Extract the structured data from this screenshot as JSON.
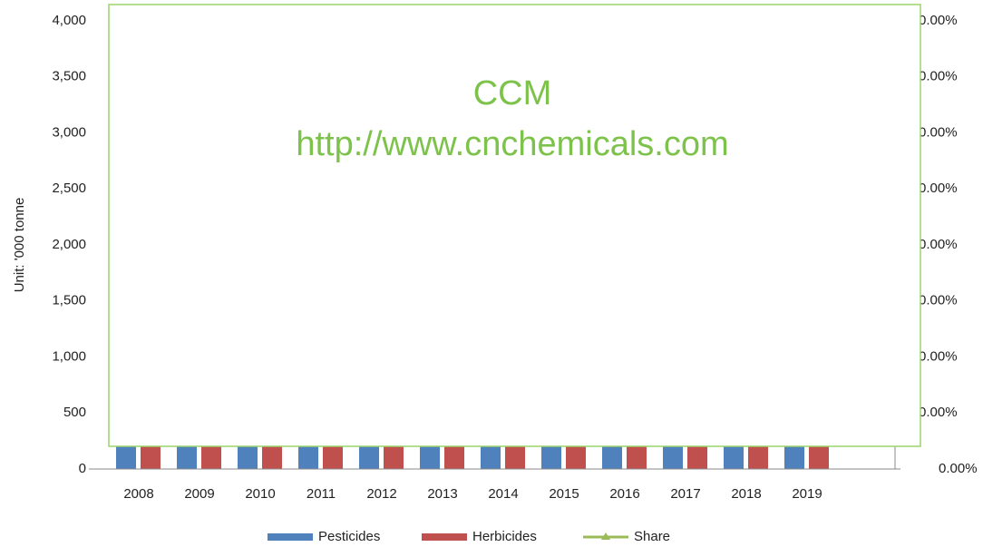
{
  "chart_data": {
    "type": "bar",
    "watermark": [
      "CCM",
      "http://www.cnchemicals.com"
    ],
    "y_label": "Unit: '000 tonne",
    "categories": [
      "2008",
      "2009",
      "2010",
      "2011",
      "2012",
      "2013",
      "2014",
      "2015",
      "2016",
      "2017",
      "2018",
      "2019"
    ],
    "series": [
      {
        "name": "Pesticides",
        "color": "#4f81bd",
        "values": [
          200,
          200,
          200,
          200,
          200,
          200,
          200,
          200,
          200,
          200,
          200,
          200
        ]
      },
      {
        "name": "Herbicides",
        "color": "#c0504d",
        "values": [
          200,
          200,
          200,
          200,
          200,
          200,
          200,
          200,
          200,
          200,
          200,
          200
        ]
      },
      {
        "name": "Share",
        "color": "#9bbb59",
        "axis": "y2",
        "values": [
          null,
          null,
          null,
          null,
          null,
          null,
          null,
          null,
          null,
          null,
          null,
          null
        ]
      }
    ],
    "ylim": [
      0,
      4000
    ],
    "yticks": [
      0,
      {
        "value": 500,
        "label": "500"
      },
      {
        "value": 1000,
        "label": "1,000"
      },
      {
        "value": 1500,
        "label": "1,500"
      },
      {
        "value": 2000,
        "label": "2,000"
      },
      {
        "value": 2500,
        "label": "2,500"
      },
      {
        "value": 3000,
        "label": "3,000"
      },
      {
        "value": 3500,
        "label": "3,500"
      },
      {
        "value": 4000,
        "label": "4,000"
      }
    ],
    "y2lim": [
      0,
      0.004
    ],
    "y2ticks": [
      {
        "value": 0,
        "label": "0.00%"
      },
      {
        "value": 0.0005,
        "label": "0.00%"
      },
      {
        "value": 0.001,
        "label": "0.00%"
      },
      {
        "value": 0.0015,
        "label": "0.00%"
      },
      {
        "value": 0.002,
        "label": "0.00%"
      },
      {
        "value": 0.0025,
        "label": "0.00%"
      },
      {
        "value": 0.003,
        "label": "0.00%"
      },
      {
        "value": 0.0035,
        "label": "0.00%"
      },
      {
        "value": 0.004,
        "label": "0.00%"
      }
    ],
    "legend": "bottom"
  }
}
